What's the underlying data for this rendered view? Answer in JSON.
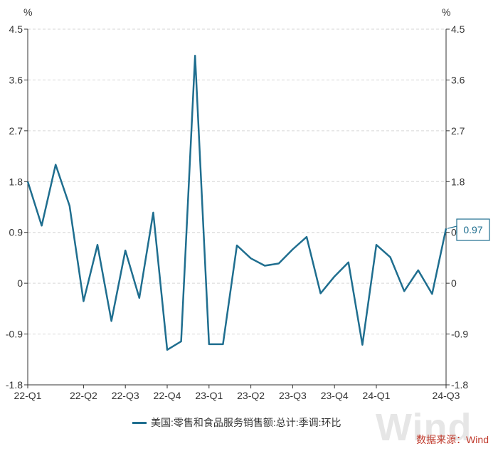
{
  "chart_data": {
    "type": "line",
    "title": "",
    "unit_left": "%",
    "unit_right": "%",
    "ylim": [
      -1.8,
      4.5
    ],
    "yticks": [
      "4.5",
      "3.6",
      "2.7",
      "1.8",
      "0.9",
      "0",
      "-0.9",
      "-1.8"
    ],
    "ytick_values": [
      4.5,
      3.6,
      2.7,
      1.8,
      0.9,
      0,
      -0.9,
      -1.8
    ],
    "x_labels": [
      "22-Q1",
      "22-Q2",
      "22-Q3",
      "22-Q4",
      "23-Q1",
      "23-Q2",
      "23-Q3",
      "23-Q4",
      "24-Q1",
      "24-Q3"
    ],
    "x_label_index": [
      0,
      4,
      7,
      10,
      13,
      16,
      19,
      22,
      25,
      30
    ],
    "grid": true,
    "legend_position": "bottom",
    "series": [
      {
        "name": "美国:零售和食品服务销售额:总计:季调:环比",
        "color": "#1f6e8f",
        "values": [
          1.8,
          1.02,
          2.1,
          1.37,
          -0.32,
          0.68,
          -0.67,
          0.58,
          -0.26,
          1.25,
          -1.18,
          -1.03,
          4.03,
          -1.08,
          -1.08,
          0.67,
          0.44,
          0.31,
          0.35,
          0.6,
          0.82,
          -0.18,
          0.12,
          0.37,
          -1.09,
          0.68,
          0.46,
          -0.14,
          0.23,
          -0.19,
          0.97
        ]
      }
    ],
    "last_value_label": "0.97"
  },
  "footer": {
    "source": "数据来源：Wind",
    "watermark": "Wind"
  }
}
